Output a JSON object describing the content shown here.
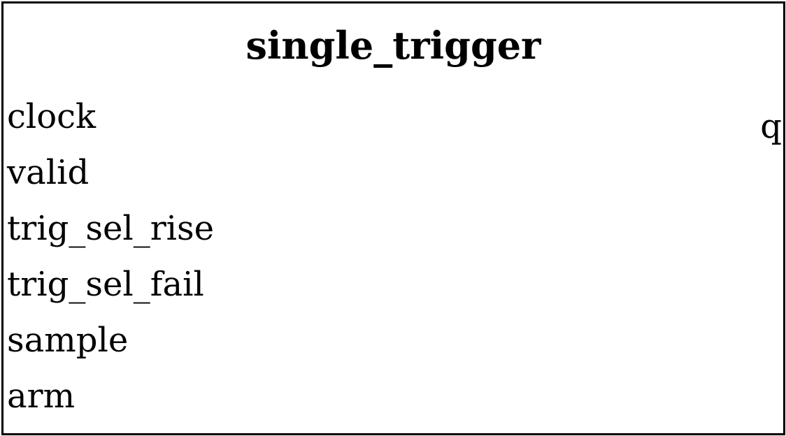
{
  "block": {
    "title": "single_trigger",
    "inputs": [
      "clock",
      "valid",
      "trig_sel_rise",
      "trig_sel_fail",
      "sample",
      "arm"
    ],
    "outputs": [
      "q"
    ]
  },
  "colors": {
    "border": "#000000",
    "background": "#ffffff",
    "text": "#000000"
  }
}
